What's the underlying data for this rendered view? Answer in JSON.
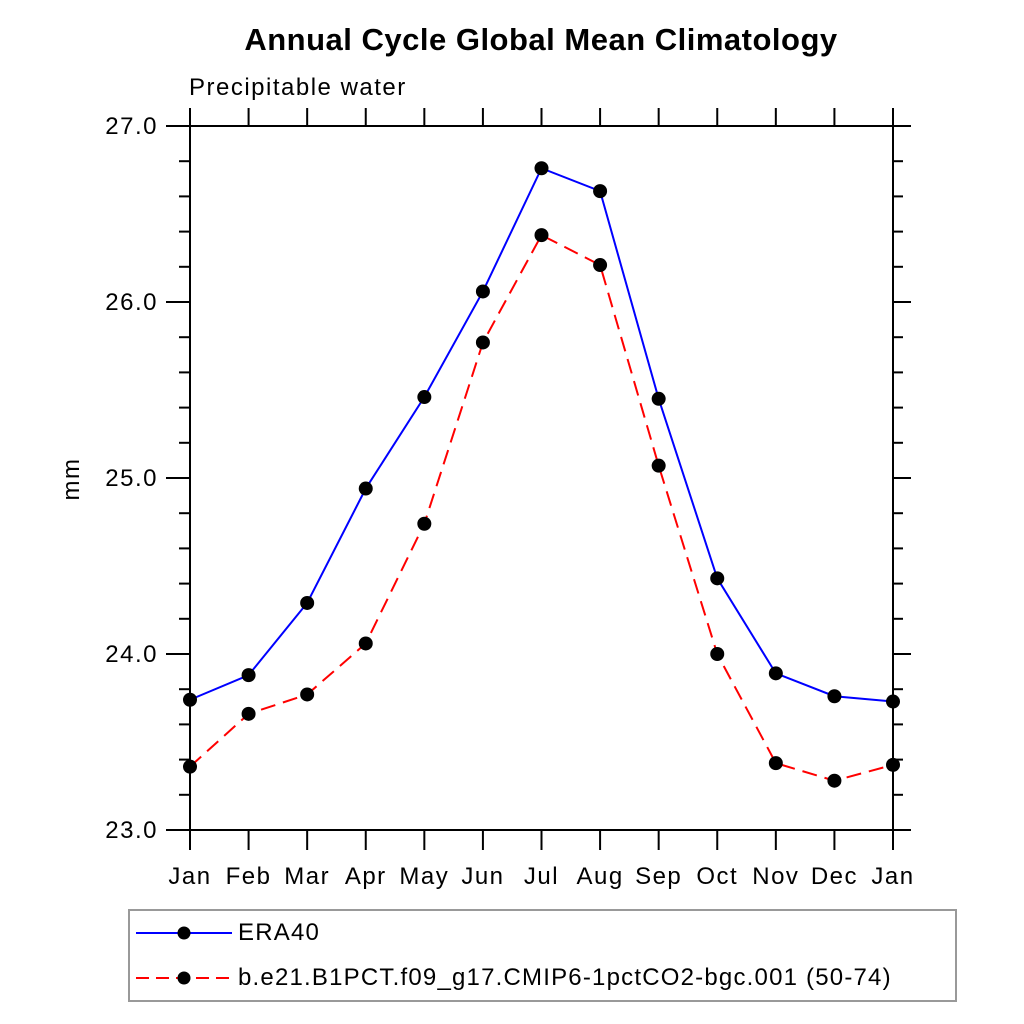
{
  "chart_data": {
    "type": "line",
    "title": "Annual Cycle Global Mean Climatology",
    "subtitle": "Precipitable water",
    "ylabel": "mm",
    "xlabel": "",
    "categories": [
      "Jan",
      "Feb",
      "Mar",
      "Apr",
      "May",
      "Jun",
      "Jul",
      "Aug",
      "Sep",
      "Oct",
      "Nov",
      "Dec",
      "Jan"
    ],
    "ylim": [
      23.0,
      27.0
    ],
    "ytick_major_step": 1.0,
    "ytick_minor_step": 0.2,
    "ytick_labels": [
      "23.0",
      "24.0",
      "25.0",
      "26.0",
      "27.0"
    ],
    "grid": false,
    "legend_position": "bottom-left",
    "series": [
      {
        "name": "ERA40",
        "color": "#0000ff",
        "line_style": "solid",
        "marker": "filled-circle",
        "marker_color": "#000000",
        "values": [
          23.74,
          23.88,
          24.29,
          24.94,
          25.46,
          26.06,
          26.76,
          26.63,
          25.45,
          24.43,
          23.89,
          23.76,
          23.73
        ]
      },
      {
        "name": "b.e21.B1PCT.f09_g17.CMIP6-1pctCO2-bgc.001 (50-74)",
        "color": "#ff0000",
        "line_style": "dashed",
        "marker": "filled-circle",
        "marker_color": "#000000",
        "values": [
          23.36,
          23.66,
          23.77,
          24.06,
          24.74,
          25.77,
          26.38,
          26.21,
          25.07,
          24.0,
          23.38,
          23.28,
          23.37
        ]
      }
    ]
  },
  "colors": {
    "background": "#ffffff",
    "axis": "#000000",
    "tick_label": "#000000",
    "legend_border": "#999999"
  }
}
